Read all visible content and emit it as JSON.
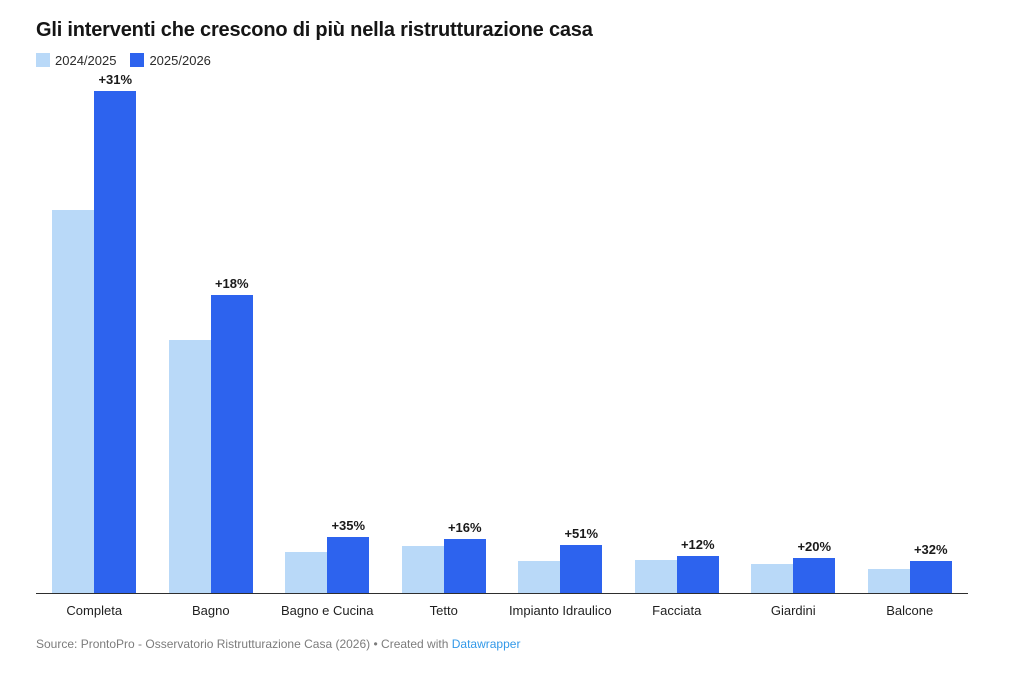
{
  "chart_data": {
    "type": "bar",
    "title": "Gli interventi che crescono di più nella ristrutturazione casa",
    "xlabel": "",
    "ylabel": "",
    "categories": [
      "Completa",
      "Bagno",
      "Bagno e Cucina",
      "Tetto",
      "Impianto Idraulico",
      "Facciata",
      "Giardini",
      "Balcone"
    ],
    "series": [
      {
        "name": "2024/2025",
        "color": "#B9D9F8",
        "values": [
          100,
          66,
          10.7,
          12.2,
          8.3,
          8.6,
          7.6,
          6.3
        ]
      },
      {
        "name": "2025/2026",
        "color": "#2D63EE",
        "values": [
          131,
          77.9,
          14.5,
          14.1,
          12.6,
          9.7,
          9.1,
          8.3
        ]
      }
    ],
    "bar_labels": [
      "+31%",
      "+18%",
      "+35%",
      "+16%",
      "+51%",
      "+12%",
      "+20%",
      "+32%"
    ],
    "ylim": [
      0,
      136
    ],
    "grid": false,
    "axis_line_color": "#2e2e2e",
    "legend_position": "top-left"
  },
  "footer": {
    "source_text": "Source: ProntoPro - Osservatorio Ristrutturazione Casa (2026)",
    "separator": " • ",
    "created_with": "Created with ",
    "link_label": "Datawrapper",
    "link_color": "#3399E8"
  }
}
